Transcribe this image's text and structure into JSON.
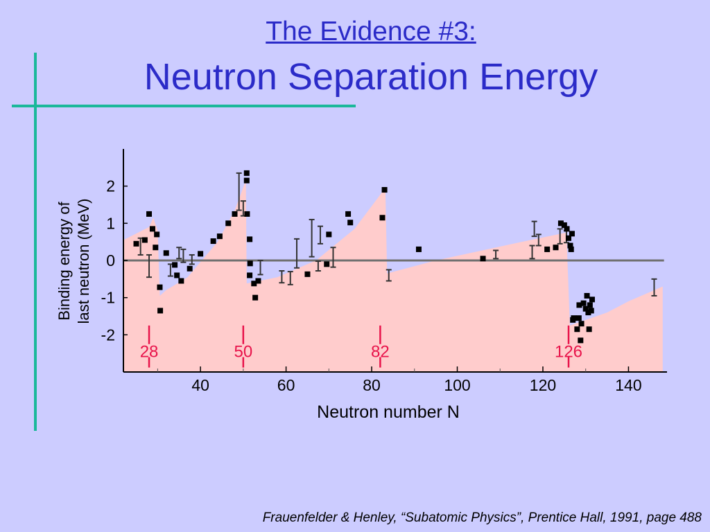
{
  "slide": {
    "title": "The Evidence #3:",
    "subtitle": "Neutron Separation Energy",
    "citation": "Frauenfelder & Henley, “Subatomic Physics”, Prentice Hall, 1991, page 488"
  },
  "chart_data": {
    "type": "scatter",
    "xlabel": "Neutron number N",
    "ylabel_lines": [
      "Binding energy of",
      "last neutron (MeV)"
    ],
    "xlim": [
      22,
      149
    ],
    "ylim": [
      -3,
      3
    ],
    "xticks": [
      40,
      60,
      80,
      100,
      120,
      140
    ],
    "yticks": [
      2,
      1,
      0,
      -1,
      -2
    ],
    "grid": false,
    "zero_line": 0,
    "magic_numbers": [
      {
        "n": 28,
        "label": "28"
      },
      {
        "n": 50,
        "label": "50"
      },
      {
        "n": 82,
        "label": "82"
      },
      {
        "n": 126,
        "label": "126"
      }
    ],
    "colors": {
      "fill": "#ffcccc",
      "points": "#000000",
      "magic": "#e8134a",
      "zero_line": "#707070",
      "axis": "#000000"
    },
    "envelope": [
      [
        22,
        -3
      ],
      [
        22,
        0.55
      ],
      [
        28,
        0.9
      ],
      [
        29,
        1.15
      ],
      [
        30,
        0.8
      ],
      [
        30.5,
        -0.95
      ],
      [
        32,
        -0.8
      ],
      [
        37,
        -0.45
      ],
      [
        44,
        0.5
      ],
      [
        48,
        1.35
      ],
      [
        50.6,
        2.15
      ],
      [
        50.8,
        -0.62
      ],
      [
        58,
        -0.45
      ],
      [
        67,
        0.0
      ],
      [
        76,
        0.85
      ],
      [
        83.2,
        1.95
      ],
      [
        83.6,
        -0.35
      ],
      [
        95,
        0.0
      ],
      [
        105,
        0.25
      ],
      [
        115,
        0.5
      ],
      [
        125.5,
        0.75
      ],
      [
        126.3,
        -1.75
      ],
      [
        135,
        -1.4
      ],
      [
        140,
        -1.1
      ],
      [
        148,
        -0.7
      ],
      [
        148,
        -3
      ]
    ],
    "points": [
      {
        "x": 25,
        "y": 0.45
      },
      {
        "x": 27,
        "y": 0.55
      },
      {
        "x": 28,
        "y": 1.25
      },
      {
        "x": 28.8,
        "y": 0.85
      },
      {
        "x": 29.5,
        "y": 0.35
      },
      {
        "x": 29.8,
        "y": 0.7
      },
      {
        "x": 30.5,
        "y": -0.72
      },
      {
        "x": 30.6,
        "y": -1.35
      },
      {
        "x": 32,
        "y": 0.2
      },
      {
        "x": 34,
        "y": -0.12
      },
      {
        "x": 34.5,
        "y": -0.4
      },
      {
        "x": 35.5,
        "y": -0.55
      },
      {
        "x": 37.5,
        "y": -0.22
      },
      {
        "x": 40,
        "y": 0.18
      },
      {
        "x": 43,
        "y": 0.52
      },
      {
        "x": 44.5,
        "y": 0.65
      },
      {
        "x": 46.5,
        "y": 1.0
      },
      {
        "x": 48,
        "y": 1.25
      },
      {
        "x": 50.8,
        "y": 2.35
      },
      {
        "x": 50.8,
        "y": 2.15
      },
      {
        "x": 50.9,
        "y": 1.25
      },
      {
        "x": 51.5,
        "y": 0.57
      },
      {
        "x": 51.6,
        "y": -0.08
      },
      {
        "x": 51.5,
        "y": -0.4
      },
      {
        "x": 52.5,
        "y": -0.62
      },
      {
        "x": 52.8,
        "y": -1.0
      },
      {
        "x": 53.5,
        "y": -0.55
      },
      {
        "x": 65,
        "y": -0.37
      },
      {
        "x": 69.5,
        "y": -0.1
      },
      {
        "x": 70,
        "y": 0.7
      },
      {
        "x": 74.5,
        "y": 1.25
      },
      {
        "x": 75,
        "y": 1.02
      },
      {
        "x": 82.5,
        "y": 1.15
      },
      {
        "x": 83,
        "y": 1.9
      },
      {
        "x": 91,
        "y": 0.3
      },
      {
        "x": 106,
        "y": 0.05
      },
      {
        "x": 121,
        "y": 0.3
      },
      {
        "x": 123,
        "y": 0.35
      },
      {
        "x": 124.2,
        "y": 1.0
      },
      {
        "x": 125,
        "y": 0.95
      },
      {
        "x": 125.6,
        "y": 0.85
      },
      {
        "x": 126,
        "y": 0.6
      },
      {
        "x": 126.4,
        "y": 0.4
      },
      {
        "x": 126.6,
        "y": 0.3
      },
      {
        "x": 126.8,
        "y": 0.72
      },
      {
        "x": 127,
        "y": -1.6
      },
      {
        "x": 127.2,
        "y": -1.55
      },
      {
        "x": 128,
        "y": -1.85
      },
      {
        "x": 128.4,
        "y": -1.55
      },
      {
        "x": 128.5,
        "y": -1.2
      },
      {
        "x": 128.8,
        "y": -2.15
      },
      {
        "x": 129,
        "y": -1.7
      },
      {
        "x": 129.5,
        "y": -1.15
      },
      {
        "x": 130,
        "y": -1.3
      },
      {
        "x": 130.3,
        "y": -0.95
      },
      {
        "x": 130.6,
        "y": -1.4
      },
      {
        "x": 130.8,
        "y": -1.85
      },
      {
        "x": 131,
        "y": -1.2
      },
      {
        "x": 131.3,
        "y": -1.35
      },
      {
        "x": 131.5,
        "y": -1.05
      }
    ],
    "error_bars": [
      {
        "x": 26,
        "y": 0.35,
        "lo": 0.15,
        "hi": 0.6
      },
      {
        "x": 28,
        "y": -0.15,
        "lo": -0.45,
        "hi": 0.15
      },
      {
        "x": 33,
        "y": -0.25,
        "lo": -0.42,
        "hi": -0.1
      },
      {
        "x": 35,
        "y": 0.2,
        "lo": 0.05,
        "hi": 0.35
      },
      {
        "x": 36,
        "y": 0.1,
        "lo": -0.05,
        "hi": 0.3
      },
      {
        "x": 38,
        "y": 0.0,
        "lo": -0.1,
        "hi": 0.15
      },
      {
        "x": 49,
        "y": 1.9,
        "lo": 1.35,
        "hi": 2.35
      },
      {
        "x": 50,
        "y": 1.4,
        "lo": 1.2,
        "hi": 1.6
      },
      {
        "x": 54,
        "y": -0.2,
        "lo": -0.38,
        "hi": 0.0
      },
      {
        "x": 59,
        "y": -0.45,
        "lo": -0.6,
        "hi": -0.28
      },
      {
        "x": 61,
        "y": -0.48,
        "lo": -0.65,
        "hi": -0.3
      },
      {
        "x": 62.5,
        "y": 0.2,
        "lo": -0.2,
        "hi": 0.58
      },
      {
        "x": 66,
        "y": 0.55,
        "lo": 0.1,
        "hi": 1.1
      },
      {
        "x": 67.5,
        "y": -0.15,
        "lo": -0.28,
        "hi": -0.02
      },
      {
        "x": 68,
        "y": 0.7,
        "lo": 0.45,
        "hi": 0.92
      },
      {
        "x": 71,
        "y": 0.1,
        "lo": -0.18,
        "hi": 0.35
      },
      {
        "x": 84,
        "y": -0.4,
        "lo": -0.55,
        "hi": -0.25
      },
      {
        "x": 109,
        "y": 0.17,
        "lo": 0.05,
        "hi": 0.27
      },
      {
        "x": 117.5,
        "y": 0.22,
        "lo": 0.05,
        "hi": 0.4
      },
      {
        "x": 118,
        "y": 0.82,
        "lo": 0.65,
        "hi": 1.05
      },
      {
        "x": 119,
        "y": 0.55,
        "lo": 0.4,
        "hi": 0.7
      },
      {
        "x": 124,
        "y": 0.6,
        "lo": 0.45,
        "hi": 0.85
      },
      {
        "x": 125.5,
        "y": 0.65,
        "lo": 0.48,
        "hi": 0.8
      },
      {
        "x": 146,
        "y": -0.75,
        "lo": -0.95,
        "hi": -0.5
      }
    ]
  }
}
